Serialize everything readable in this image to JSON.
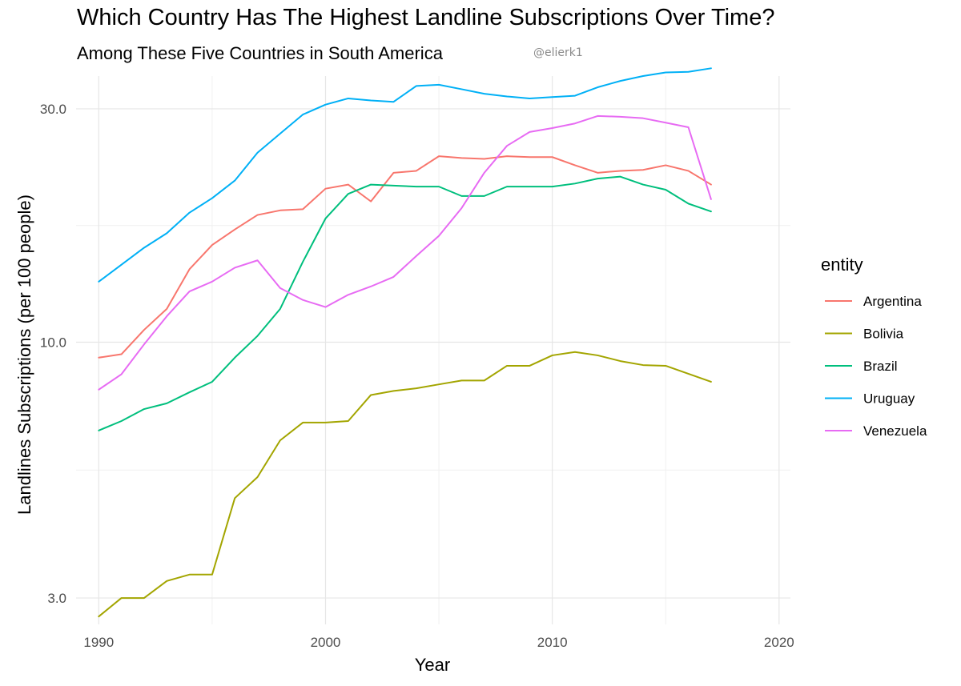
{
  "title": "Which Country Has The Highest Landline Subscriptions Over Time?",
  "subtitle": "Among These Five Countries in South America",
  "credit": "@elierk1",
  "chart_data": {
    "type": "line",
    "title": "Which Country Has The Highest Landline Subscriptions Over Time?",
    "subtitle": "Among These Five Countries in South America",
    "xlabel": "Year",
    "ylabel": "Landlines Subscriptions (per 100 people)",
    "y_scale": "log10",
    "xlim": [
      1989,
      2020.5
    ],
    "ylim": [
      2.65,
      35
    ],
    "x_ticks": [
      1990,
      2000,
      2010,
      2020
    ],
    "x_tick_labels": [
      "1990",
      "2000",
      "2010",
      "2020"
    ],
    "y_ticks": [
      3,
      10,
      30
    ],
    "y_tick_labels": [
      "3.0",
      "10.0",
      "30.0"
    ],
    "grid": true,
    "legend_title": "entity",
    "legend_position": "right",
    "x": [
      1990,
      1991,
      1992,
      1993,
      1994,
      1995,
      1996,
      1997,
      1998,
      1999,
      2000,
      2001,
      2002,
      2003,
      2004,
      2005,
      2006,
      2007,
      2008,
      2009,
      2010,
      2011,
      2012,
      2013,
      2014,
      2015,
      2016,
      2017
    ],
    "series": [
      {
        "name": "Argentina",
        "color": "#F8766D",
        "values": [
          9.3,
          9.45,
          10.6,
          11.7,
          14.1,
          15.8,
          17.0,
          18.2,
          18.6,
          18.7,
          20.6,
          21.0,
          19.4,
          22.2,
          22.4,
          24.0,
          23.8,
          23.7,
          24.0,
          23.9,
          23.9,
          23.0,
          22.2,
          22.4,
          22.5,
          23.0,
          22.4,
          21.0
        ],
        "color_hex": "#F8766D"
      },
      {
        "name": "Bolivia",
        "color": "#A3A500",
        "values": [
          2.75,
          3.0,
          3.0,
          3.25,
          3.35,
          3.35,
          4.8,
          5.3,
          6.3,
          6.85,
          6.85,
          6.9,
          7.8,
          7.95,
          8.05,
          8.2,
          8.35,
          8.35,
          8.95,
          8.95,
          9.4,
          9.55,
          9.4,
          9.15,
          8.98,
          8.95,
          8.62,
          8.3
        ],
        "color_hex": "#A3A500"
      },
      {
        "name": "Brazil",
        "color": "#00BF7D",
        "values": [
          6.6,
          6.9,
          7.3,
          7.5,
          7.9,
          8.3,
          9.3,
          10.3,
          11.7,
          14.6,
          17.9,
          20.1,
          21.0,
          20.9,
          20.8,
          20.8,
          19.9,
          19.9,
          20.8,
          20.8,
          20.8,
          21.1,
          21.6,
          21.8,
          21.0,
          20.5,
          19.2,
          18.5
        ],
        "color_hex": "#00BF7D"
      },
      {
        "name": "Uruguay",
        "color": "#00B0F6",
        "values": [
          13.3,
          14.4,
          15.6,
          16.7,
          18.4,
          19.7,
          21.4,
          24.4,
          26.7,
          29.2,
          30.6,
          31.5,
          31.2,
          31.0,
          33.4,
          33.6,
          32.9,
          32.2,
          31.8,
          31.5,
          31.7,
          31.9,
          33.2,
          34.2,
          35.0,
          35.6,
          35.7,
          36.3
        ],
        "color_hex": "#00B0F6"
      },
      {
        "name": "Venezuela",
        "color": "#E76BF3",
        "values": [
          8.0,
          8.6,
          9.9,
          11.3,
          12.7,
          13.3,
          14.2,
          14.7,
          12.9,
          12.2,
          11.8,
          12.5,
          13.0,
          13.6,
          15.0,
          16.5,
          18.8,
          22.2,
          25.2,
          26.9,
          27.4,
          28.0,
          29.0,
          28.9,
          28.7,
          28.1,
          27.5,
          19.6
        ],
        "color_hex": "#E76BF3"
      }
    ]
  }
}
